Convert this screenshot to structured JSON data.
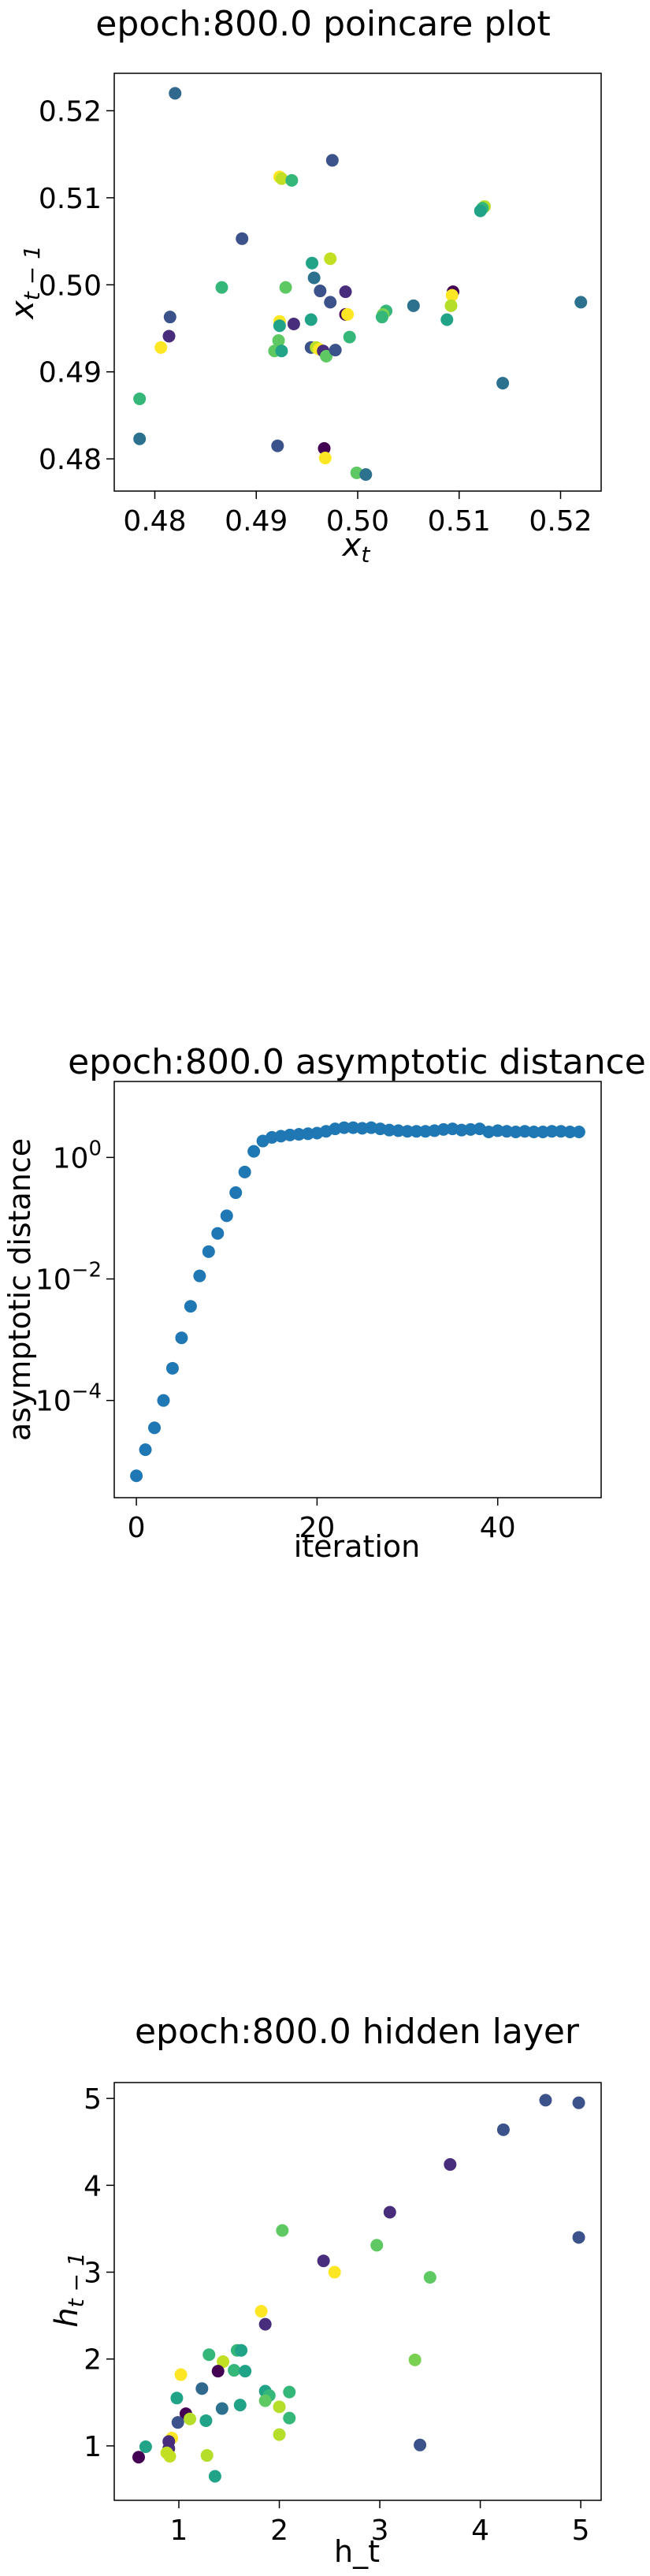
{
  "chart_data": [
    {
      "type": "scatter",
      "title": "epoch:800.0 poincare plot",
      "xlabel": "x_t",
      "ylabel": "x_{t-1}",
      "xlim": [
        0.476,
        0.524
      ],
      "ylim": [
        0.4763,
        0.5243
      ],
      "xticks": [
        0.48,
        0.49,
        0.5,
        0.51,
        0.52
      ],
      "xtick_labels": [
        "0.48",
        "0.49",
        "0.50",
        "0.51",
        "0.52"
      ],
      "yticks": [
        0.48,
        0.49,
        0.5,
        0.51,
        0.52
      ],
      "ytick_labels": [
        "0.48",
        "0.49",
        "0.50",
        "0.51",
        "0.52"
      ],
      "grid": false,
      "colormap": "viridis",
      "points": [
        {
          "x": 0.482,
          "y": 0.522,
          "c": "#31688e"
        },
        {
          "x": 0.4975,
          "y": 0.5143,
          "c": "#3b528b"
        },
        {
          "x": 0.4923,
          "y": 0.5124,
          "c": "#fde725"
        },
        {
          "x": 0.4925,
          "y": 0.5122,
          "c": "#c2df23"
        },
        {
          "x": 0.4935,
          "y": 0.512,
          "c": "#35b779"
        },
        {
          "x": 0.5125,
          "y": 0.509,
          "c": "#b5de2b"
        },
        {
          "x": 0.5123,
          "y": 0.5088,
          "c": "#35b779"
        },
        {
          "x": 0.5121,
          "y": 0.5085,
          "c": "#20a386"
        },
        {
          "x": 0.4886,
          "y": 0.5053,
          "c": "#3b528b"
        },
        {
          "x": 0.4955,
          "y": 0.5025,
          "c": "#20a386"
        },
        {
          "x": 0.4973,
          "y": 0.503,
          "c": "#c2df23"
        },
        {
          "x": 0.4957,
          "y": 0.5008,
          "c": "#2c728e"
        },
        {
          "x": 0.4866,
          "y": 0.4997,
          "c": "#35b779"
        },
        {
          "x": 0.4929,
          "y": 0.4997,
          "c": "#5ec962"
        },
        {
          "x": 0.4963,
          "y": 0.4993,
          "c": "#3b528b"
        },
        {
          "x": 0.4988,
          "y": 0.4992,
          "c": "#472d7b"
        },
        {
          "x": 0.5094,
          "y": 0.4992,
          "c": "#440154"
        },
        {
          "x": 0.5093,
          "y": 0.4988,
          "c": "#fde725"
        },
        {
          "x": 0.522,
          "y": 0.498,
          "c": "#2c728e"
        },
        {
          "x": 0.4973,
          "y": 0.498,
          "c": "#3b528b"
        },
        {
          "x": 0.5055,
          "y": 0.4976,
          "c": "#2c728e"
        },
        {
          "x": 0.5092,
          "y": 0.4976,
          "c": "#b5de2b"
        },
        {
          "x": 0.4815,
          "y": 0.4963,
          "c": "#3b528b"
        },
        {
          "x": 0.5028,
          "y": 0.497,
          "c": "#35b779"
        },
        {
          "x": 0.4988,
          "y": 0.4966,
          "c": "#440154"
        },
        {
          "x": 0.499,
          "y": 0.4966,
          "c": "#fde725"
        },
        {
          "x": 0.5025,
          "y": 0.4966,
          "c": "#7ad151"
        },
        {
          "x": 0.5024,
          "y": 0.4963,
          "c": "#35b779"
        },
        {
          "x": 0.5088,
          "y": 0.496,
          "c": "#20a386"
        },
        {
          "x": 0.4954,
          "y": 0.496,
          "c": "#20a386"
        },
        {
          "x": 0.4937,
          "y": 0.4955,
          "c": "#472d7b"
        },
        {
          "x": 0.4923,
          "y": 0.4958,
          "c": "#fde725"
        },
        {
          "x": 0.4923,
          "y": 0.4953,
          "c": "#20a386"
        },
        {
          "x": 0.4814,
          "y": 0.4941,
          "c": "#472d7b"
        },
        {
          "x": 0.4992,
          "y": 0.494,
          "c": "#35b779"
        },
        {
          "x": 0.4922,
          "y": 0.4936,
          "c": "#5ec962"
        },
        {
          "x": 0.4806,
          "y": 0.4928,
          "c": "#fde725"
        },
        {
          "x": 0.4954,
          "y": 0.4928,
          "c": "#3b528b"
        },
        {
          "x": 0.4959,
          "y": 0.4928,
          "c": "#b5de2b"
        },
        {
          "x": 0.4962,
          "y": 0.4926,
          "c": "#fde725"
        },
        {
          "x": 0.4918,
          "y": 0.4924,
          "c": "#5ec962"
        },
        {
          "x": 0.4925,
          "y": 0.4924,
          "c": "#20a386"
        },
        {
          "x": 0.4966,
          "y": 0.4924,
          "c": "#472d7b"
        },
        {
          "x": 0.4969,
          "y": 0.4918,
          "c": "#5ec962"
        },
        {
          "x": 0.4978,
          "y": 0.4925,
          "c": "#3b528b"
        },
        {
          "x": 0.4785,
          "y": 0.4869,
          "c": "#35b779"
        },
        {
          "x": 0.5143,
          "y": 0.4887,
          "c": "#2c728e"
        },
        {
          "x": 0.4785,
          "y": 0.4823,
          "c": "#2c728e"
        },
        {
          "x": 0.4921,
          "y": 0.4815,
          "c": "#3b528b"
        },
        {
          "x": 0.4967,
          "y": 0.4812,
          "c": "#440154"
        },
        {
          "x": 0.4968,
          "y": 0.4801,
          "c": "#fde725"
        },
        {
          "x": 0.4999,
          "y": 0.4784,
          "c": "#5ec962"
        },
        {
          "x": 0.5008,
          "y": 0.4782,
          "c": "#2c728e"
        }
      ]
    },
    {
      "type": "scatter",
      "title": "epoch:800.0 asymptotic distance",
      "xlabel": "iteration",
      "ylabel": "asymptotic distance",
      "yscale": "log",
      "xlim": [
        -2.45,
        51.45
      ],
      "ylim_log10": [
        -5.6,
        1.25
      ],
      "xticks": [
        0,
        20,
        40
      ],
      "xtick_labels": [
        "0",
        "20",
        "40"
      ],
      "yticks_log10": [
        -4,
        -2,
        0
      ],
      "ytick_labels": [
        "10",
        "10",
        "10"
      ],
      "ytick_exponents": [
        "−4",
        "−2",
        "0"
      ],
      "grid": false,
      "color": "#1f77b4",
      "x": [
        0,
        1,
        2,
        3,
        4,
        5,
        6,
        7,
        8,
        9,
        10,
        11,
        12,
        13,
        14,
        15,
        16,
        17,
        18,
        19,
        20,
        21,
        22,
        23,
        24,
        25,
        26,
        27,
        28,
        29,
        30,
        31,
        32,
        33,
        34,
        35,
        36,
        37,
        38,
        39,
        40,
        41,
        42,
        43,
        44,
        45,
        46,
        47,
        48,
        49
      ],
      "log10_y": [
        -5.24,
        -4.81,
        -4.45,
        -4.0,
        -3.47,
        -2.97,
        -2.45,
        -1.95,
        -1.55,
        -1.25,
        -0.96,
        -0.58,
        -0.24,
        0.1,
        0.27,
        0.33,
        0.35,
        0.37,
        0.38,
        0.39,
        0.4,
        0.43,
        0.47,
        0.49,
        0.49,
        0.48,
        0.49,
        0.47,
        0.45,
        0.44,
        0.43,
        0.43,
        0.43,
        0.44,
        0.46,
        0.47,
        0.45,
        0.46,
        0.47,
        0.42,
        0.44,
        0.43,
        0.42,
        0.43,
        0.42,
        0.42,
        0.43,
        0.43,
        0.42,
        0.42
      ]
    },
    {
      "type": "scatter",
      "title": "epoch:800.0 hidden layer",
      "xlabel": "h_t",
      "ylabel": "h_{t-1}",
      "xlim": [
        0.357,
        5.203
      ],
      "ylim": [
        0.373,
        5.183
      ],
      "xticks": [
        1,
        2,
        3,
        4,
        5
      ],
      "xtick_labels": [
        "1",
        "2",
        "3",
        "4",
        "5"
      ],
      "yticks": [
        1,
        2,
        3,
        4,
        5
      ],
      "ytick_labels": [
        "1",
        "2",
        "3",
        "4",
        "5"
      ],
      "grid": false,
      "colormap": "viridis",
      "points": [
        {
          "x": 4.65,
          "y": 4.98,
          "c": "#3b528b"
        },
        {
          "x": 4.98,
          "y": 4.95,
          "c": "#3b528b"
        },
        {
          "x": 4.23,
          "y": 4.64,
          "c": "#3b528b"
        },
        {
          "x": 3.7,
          "y": 4.24,
          "c": "#472d7b"
        },
        {
          "x": 3.1,
          "y": 3.69,
          "c": "#472d7b"
        },
        {
          "x": 2.03,
          "y": 3.48,
          "c": "#5ec962"
        },
        {
          "x": 4.98,
          "y": 3.4,
          "c": "#3b528b"
        },
        {
          "x": 2.97,
          "y": 3.31,
          "c": "#5ec962"
        },
        {
          "x": 2.44,
          "y": 3.13,
          "c": "#472d7b"
        },
        {
          "x": 2.55,
          "y": 3.0,
          "c": "#fde725"
        },
        {
          "x": 3.5,
          "y": 2.94,
          "c": "#5ec962"
        },
        {
          "x": 1.82,
          "y": 2.55,
          "c": "#fde725"
        },
        {
          "x": 1.86,
          "y": 2.4,
          "c": "#472d7b"
        },
        {
          "x": 1.58,
          "y": 2.1,
          "c": "#35b779"
        },
        {
          "x": 1.62,
          "y": 2.1,
          "c": "#20a386"
        },
        {
          "x": 1.3,
          "y": 2.05,
          "c": "#35b779"
        },
        {
          "x": 3.35,
          "y": 1.99,
          "c": "#7ad151"
        },
        {
          "x": 1.44,
          "y": 1.97,
          "c": "#c2df23"
        },
        {
          "x": 1.55,
          "y": 1.87,
          "c": "#35b779"
        },
        {
          "x": 1.39,
          "y": 1.86,
          "c": "#440154"
        },
        {
          "x": 1.66,
          "y": 1.86,
          "c": "#20a386"
        },
        {
          "x": 1.02,
          "y": 1.82,
          "c": "#fde725"
        },
        {
          "x": 1.23,
          "y": 1.66,
          "c": "#31688e"
        },
        {
          "x": 1.86,
          "y": 1.63,
          "c": "#20a386"
        },
        {
          "x": 2.1,
          "y": 1.62,
          "c": "#35b779"
        },
        {
          "x": 1.9,
          "y": 1.58,
          "c": "#35b779"
        },
        {
          "x": 0.98,
          "y": 1.55,
          "c": "#20a386"
        },
        {
          "x": 1.86,
          "y": 1.52,
          "c": "#5ec962"
        },
        {
          "x": 1.61,
          "y": 1.47,
          "c": "#20a386"
        },
        {
          "x": 1.43,
          "y": 1.43,
          "c": "#2c728e"
        },
        {
          "x": 2.0,
          "y": 1.45,
          "c": "#b5de2b"
        },
        {
          "x": 1.07,
          "y": 1.37,
          "c": "#440154"
        },
        {
          "x": 2.1,
          "y": 1.32,
          "c": "#35b779"
        },
        {
          "x": 1.11,
          "y": 1.31,
          "c": "#b5de2b"
        },
        {
          "x": 1.27,
          "y": 1.29,
          "c": "#20a386"
        },
        {
          "x": 0.99,
          "y": 1.27,
          "c": "#3b528b"
        },
        {
          "x": 2.0,
          "y": 1.13,
          "c": "#b5de2b"
        },
        {
          "x": 0.93,
          "y": 1.09,
          "c": "#fde725"
        },
        {
          "x": 0.9,
          "y": 1.05,
          "c": "#472d7b"
        },
        {
          "x": 3.4,
          "y": 1.01,
          "c": "#3b528b"
        },
        {
          "x": 0.67,
          "y": 0.99,
          "c": "#20a386"
        },
        {
          "x": 0.9,
          "y": 0.97,
          "c": "#472d7b"
        },
        {
          "x": 0.88,
          "y": 0.92,
          "c": "#c2df23"
        },
        {
          "x": 0.6,
          "y": 0.87,
          "c": "#440154"
        },
        {
          "x": 0.91,
          "y": 0.88,
          "c": "#c2df23"
        },
        {
          "x": 1.28,
          "y": 0.89,
          "c": "#b5de2b"
        },
        {
          "x": 1.36,
          "y": 0.65,
          "c": "#20a386"
        }
      ]
    }
  ]
}
